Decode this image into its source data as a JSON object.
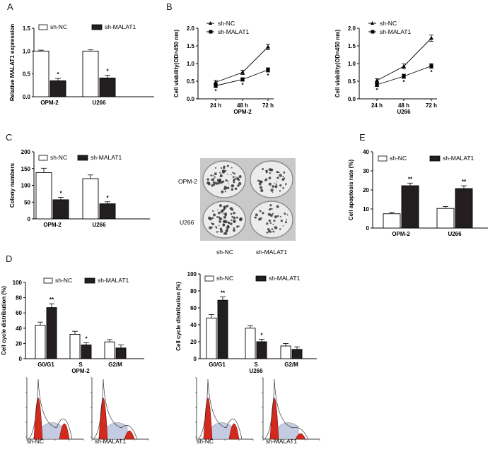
{
  "panel_labels": {
    "A": "A",
    "B": "B",
    "C": "C",
    "D": "D",
    "E": "E"
  },
  "colony_image": {
    "rows": [
      "OPM-2",
      "U266"
    ],
    "cols": [
      "sh-NC",
      "sh-MALAT1"
    ]
  },
  "flow_captions": [
    "sh-NC",
    "sh-MALAT1",
    "sh-NC",
    "sh-MALAT1"
  ],
  "colors": {
    "sh_nc": "#ffffff",
    "sh_malat1": "#231f20",
    "flow_fill": "#d42a1e",
    "flow_bg": "#c5cbe3"
  },
  "chart_data": [
    {
      "id": "A",
      "type": "bar",
      "ylabel": "Relative MALAT1 expression",
      "categories": [
        "OPM-2",
        "U266"
      ],
      "ylim": [
        0,
        1.5
      ],
      "yticks": [
        "0.0",
        "0.5",
        "1.0",
        "1.5"
      ],
      "series": [
        {
          "name": "sh-NC",
          "values": [
            1.0,
            1.0
          ],
          "errors": [
            0.02,
            0.03
          ],
          "sig": [
            "",
            ""
          ]
        },
        {
          "name": "sh-MALAT1",
          "values": [
            0.35,
            0.41
          ],
          "errors": [
            0.05,
            0.06
          ],
          "sig": [
            "*",
            "*"
          ]
        }
      ]
    },
    {
      "id": "B1",
      "type": "line",
      "ylabel": "Cell viability(OD=450 nm)",
      "xlabel": "OPM-2",
      "categories": [
        "24 h",
        "48 h",
        "72 h"
      ],
      "ylim": [
        0,
        2.0
      ],
      "yticks": [
        "0.0",
        "0.5",
        "1.0",
        "1.5",
        "2.0"
      ],
      "series": [
        {
          "name": "sh-NC",
          "values": [
            0.47,
            0.75,
            1.47
          ],
          "errors": [
            0.05,
            0.06,
            0.08
          ],
          "sig": [
            "",
            "",
            ""
          ]
        },
        {
          "name": "sh-MALAT1",
          "values": [
            0.37,
            0.55,
            0.82
          ],
          "errors": [
            0.05,
            0.05,
            0.06
          ],
          "sig": [
            "*",
            "*",
            "*"
          ]
        }
      ]
    },
    {
      "id": "B2",
      "type": "line",
      "ylabel": "Cell viability(OD=450 nm)",
      "xlabel": "U266",
      "categories": [
        "24 h",
        "48 h",
        "72 h"
      ],
      "ylim": [
        0,
        2.0
      ],
      "yticks": [
        "0.0",
        "0.5",
        "1.0",
        "1.5",
        "2.0"
      ],
      "series": [
        {
          "name": "sh-NC",
          "values": [
            0.52,
            0.92,
            1.72
          ],
          "errors": [
            0.05,
            0.07,
            0.09
          ],
          "sig": [
            "",
            "",
            ""
          ]
        },
        {
          "name": "sh-MALAT1",
          "values": [
            0.4,
            0.64,
            0.93
          ],
          "errors": [
            0.05,
            0.06,
            0.07
          ],
          "sig": [
            "*",
            "*",
            "*"
          ]
        }
      ]
    },
    {
      "id": "C",
      "type": "bar",
      "ylabel": "Colony numbers",
      "categories": [
        "OPM-2",
        "U266"
      ],
      "ylim": [
        0,
        200
      ],
      "yticks": [
        "0",
        "50",
        "100",
        "150",
        "200"
      ],
      "series": [
        {
          "name": "sh-NC",
          "values": [
            138,
            120
          ],
          "errors": [
            13,
            11
          ],
          "sig": [
            "",
            ""
          ]
        },
        {
          "name": "sh-MALAT1",
          "values": [
            57,
            45
          ],
          "errors": [
            7,
            6
          ],
          "sig": [
            "*",
            "*"
          ]
        }
      ]
    },
    {
      "id": "E",
      "type": "bar",
      "ylabel": "Cell apoptosis rate (%)",
      "categories": [
        "OPM-2",
        "U266"
      ],
      "ylim": [
        0,
        40
      ],
      "yticks": [
        "0",
        "10",
        "20",
        "30",
        "40"
      ],
      "series": [
        {
          "name": "sh-NC",
          "values": [
            7.5,
            10.3
          ],
          "errors": [
            0.8,
            1.0
          ],
          "sig": [
            "",
            ""
          ]
        },
        {
          "name": "sh-MALAT1",
          "values": [
            22.2,
            20.7
          ],
          "errors": [
            1.4,
            1.5
          ],
          "sig": [
            "**",
            "**"
          ]
        }
      ]
    },
    {
      "id": "D1",
      "type": "bar",
      "ylabel": "Cell cycle distribution (%)",
      "xlabel": "OPM-2",
      "categories": [
        "G0/G1",
        "S",
        "G2/M"
      ],
      "ylim": [
        0,
        100
      ],
      "yticks": [
        "0",
        "20",
        "40",
        "60",
        "80",
        "100"
      ],
      "series": [
        {
          "name": "sh-NC",
          "values": [
            44,
            32,
            22
          ],
          "errors": [
            4,
            4,
            3
          ],
          "sig": [
            "",
            "",
            ""
          ]
        },
        {
          "name": "sh-MALAT1",
          "values": [
            67,
            18,
            14
          ],
          "errors": [
            5,
            3,
            4
          ],
          "sig": [
            "**",
            "*",
            ""
          ]
        }
      ]
    },
    {
      "id": "D2",
      "type": "bar",
      "ylabel": "Cell cycle distribution (%)",
      "xlabel": "U266",
      "categories": [
        "G0/G1",
        "S",
        "G2/M"
      ],
      "ylim": [
        0,
        100
      ],
      "yticks": [
        "0",
        "20",
        "40",
        "60",
        "80",
        "100"
      ],
      "series": [
        {
          "name": "sh-NC",
          "values": [
            48,
            36,
            15
          ],
          "errors": [
            4,
            3,
            3
          ],
          "sig": [
            "",
            "",
            ""
          ]
        },
        {
          "name": "sh-MALAT1",
          "values": [
            69,
            20,
            11
          ],
          "errors": [
            4,
            3,
            3
          ],
          "sig": [
            "**",
            "*",
            ""
          ]
        }
      ]
    }
  ]
}
